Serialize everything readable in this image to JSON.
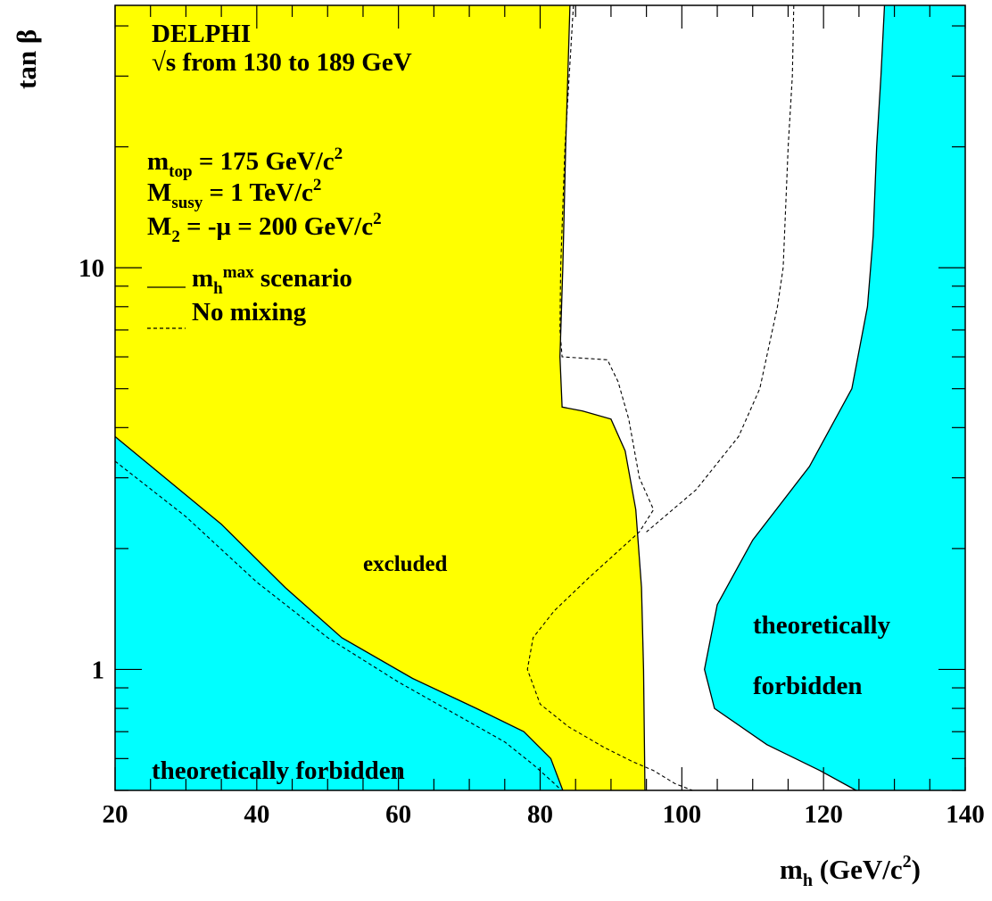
{
  "chart_data": {
    "type": "area",
    "title": "",
    "xlabel": "m",
    "xlabel_sub": "h",
    "xlabel_unit": " (GeV/c",
    "xlabel_unit_sup": "2",
    "xlabel_unit_close": ")",
    "ylabel": "tan β",
    "x_range": [
      20,
      140
    ],
    "y_range": [
      0.5,
      45
    ],
    "y_scale": "log",
    "x_ticks": [
      20,
      40,
      60,
      80,
      100,
      120,
      140
    ],
    "x_tick_labels": [
      "20",
      "40",
      "60",
      "80",
      "100",
      "120",
      "140"
    ],
    "y_ticks": [
      1,
      10
    ],
    "y_tick_labels": [
      "1",
      "10"
    ],
    "grid": false,
    "colors": {
      "excluded": "#ffff00",
      "forbidden": "#00ffff",
      "allowed": "#ffffff",
      "line": "#000000"
    },
    "header": {
      "experiment": "DELPHI",
      "energy": "√s from 130 to 189 GeV"
    },
    "parameters": [
      {
        "main": "m",
        "sub": "top",
        "value": " = 175 GeV/c",
        "sup": "2"
      },
      {
        "main": "M",
        "sub": "susy",
        "value": " = 1 TeV/c",
        "sup": "2"
      },
      {
        "main": "M",
        "sub": "2",
        "value": " = -μ = 200 GeV/c",
        "sup": "2"
      }
    ],
    "legend": [
      {
        "style": "solid",
        "main": "m",
        "sub": "h",
        "sup": "max",
        "text": " scenario"
      },
      {
        "style": "dashed",
        "text": "No mixing"
      }
    ],
    "annotations": {
      "excluded": "excluded",
      "forbidden_left": "theoretically forbidden",
      "forbidden_right_1": "theoretically",
      "forbidden_right_2": "forbidden"
    },
    "series": [
      {
        "name": "excluded",
        "kind": "region",
        "polygon": [
          [
            20,
            45
          ],
          [
            84.2,
            45
          ],
          [
            83.6,
            20
          ],
          [
            83.2,
            10
          ],
          [
            82.8,
            6
          ],
          [
            83.1,
            4.5
          ],
          [
            86,
            4.4
          ],
          [
            90,
            4.2
          ],
          [
            92,
            3.5
          ],
          [
            93.5,
            2.5
          ],
          [
            94.3,
            1.6
          ],
          [
            94.6,
            1.0
          ],
          [
            94.8,
            0.5
          ],
          [
            83.2,
            0.5
          ],
          [
            81.5,
            0.6
          ],
          [
            77.7,
            0.7
          ],
          [
            71,
            0.8
          ],
          [
            62,
            0.95
          ],
          [
            52,
            1.2
          ],
          [
            44,
            1.6
          ],
          [
            35,
            2.3
          ],
          [
            20,
            3.8
          ]
        ]
      },
      {
        "name": "forbidden_left",
        "kind": "region",
        "polygon": [
          [
            20,
            3.8
          ],
          [
            35,
            2.3
          ],
          [
            44,
            1.6
          ],
          [
            52,
            1.2
          ],
          [
            62,
            0.95
          ],
          [
            71,
            0.8
          ],
          [
            77.7,
            0.7
          ],
          [
            81.5,
            0.6
          ],
          [
            83.2,
            0.5
          ],
          [
            20,
            0.5
          ]
        ]
      },
      {
        "name": "forbidden_right",
        "kind": "region",
        "polygon": [
          [
            140,
            45
          ],
          [
            128.6,
            45
          ],
          [
            128.1,
            30
          ],
          [
            127.5,
            20
          ],
          [
            127,
            12
          ],
          [
            126.2,
            8
          ],
          [
            124,
            5
          ],
          [
            118,
            3.2
          ],
          [
            110,
            2.1
          ],
          [
            105,
            1.45
          ],
          [
            103.2,
            1.0
          ],
          [
            104.6,
            0.8
          ],
          [
            112,
            0.65
          ],
          [
            119.5,
            0.56
          ],
          [
            124.6,
            0.5
          ],
          [
            140,
            0.5
          ]
        ]
      },
      {
        "name": "m_h^max scenario",
        "kind": "line",
        "style": "solid",
        "segments": [
          [
            [
              20,
              3.8
            ],
            [
              35,
              2.3
            ],
            [
              44,
              1.6
            ],
            [
              52,
              1.2
            ],
            [
              62,
              0.95
            ],
            [
              71,
              0.8
            ],
            [
              77.7,
              0.7
            ],
            [
              81.5,
              0.6
            ],
            [
              83.2,
              0.5
            ]
          ],
          [
            [
              84.2,
              45
            ],
            [
              83.6,
              20
            ],
            [
              83.2,
              10
            ],
            [
              82.8,
              6
            ],
            [
              83.1,
              4.5
            ],
            [
              86,
              4.4
            ],
            [
              90,
              4.2
            ],
            [
              92,
              3.5
            ],
            [
              93.5,
              2.5
            ],
            [
              94.3,
              1.6
            ],
            [
              94.6,
              1.0
            ],
            [
              94.8,
              0.5
            ]
          ],
          [
            [
              128.6,
              45
            ],
            [
              128.1,
              30
            ],
            [
              127.5,
              20
            ],
            [
              127,
              12
            ],
            [
              126.2,
              8
            ],
            [
              124,
              5
            ],
            [
              118,
              3.2
            ],
            [
              110,
              2.1
            ],
            [
              105,
              1.45
            ],
            [
              103.2,
              1.0
            ],
            [
              104.6,
              0.8
            ],
            [
              112,
              0.65
            ],
            [
              119.5,
              0.56
            ],
            [
              124.6,
              0.5
            ]
          ]
        ]
      },
      {
        "name": "No mixing",
        "kind": "line",
        "style": "dashed",
        "segments": [
          [
            [
              20,
              3.3
            ],
            [
              30,
              2.4
            ],
            [
              40,
              1.65
            ],
            [
              50,
              1.2
            ],
            [
              60,
              0.93
            ],
            [
              70,
              0.74
            ],
            [
              75,
              0.66
            ],
            [
              79,
              0.58
            ],
            [
              82,
              0.52
            ],
            [
              83,
              0.5
            ]
          ],
          [
            [
              84.7,
              45
            ],
            [
              83.5,
              20
            ],
            [
              82.9,
              10
            ],
            [
              82.8,
              7
            ],
            [
              83.1,
              6
            ],
            [
              89.5,
              5.9
            ],
            [
              91,
              5.2
            ],
            [
              92.5,
              4.2
            ],
            [
              94,
              3
            ],
            [
              96,
              2.5
            ],
            [
              94,
              2.2
            ],
            [
              87,
              1.7
            ],
            [
              82,
              1.4
            ],
            [
              79,
              1.2
            ],
            [
              78.2,
              1.0
            ],
            [
              80,
              0.82
            ],
            [
              84,
              0.72
            ],
            [
              89,
              0.64
            ],
            [
              93,
              0.59
            ],
            [
              96,
              0.56
            ],
            [
              99,
              0.52
            ],
            [
              101.5,
              0.5
            ]
          ],
          [
            [
              115.8,
              45
            ],
            [
              115.6,
              30
            ],
            [
              115,
              20
            ],
            [
              114.3,
              10
            ],
            [
              113.5,
              8
            ],
            [
              111,
              5
            ],
            [
              108,
              3.8
            ],
            [
              102,
              2.8
            ],
            [
              95,
              2.2
            ]
          ]
        ]
      }
    ]
  }
}
